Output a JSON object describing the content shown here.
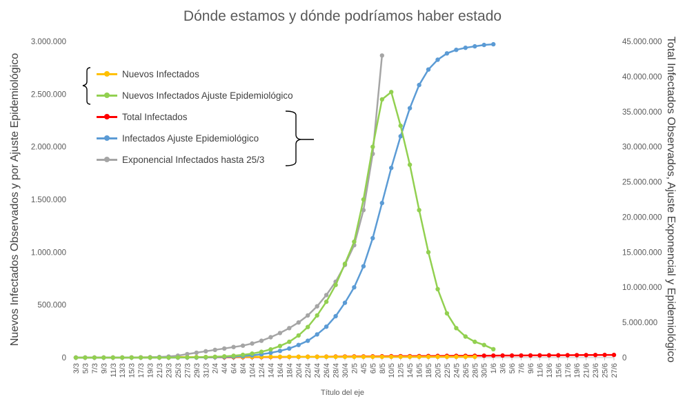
{
  "chart_data": {
    "type": "line",
    "title": "Dónde estamos y dónde podríamos haber estado",
    "xlabel": "Título del eje",
    "ylabel_left": "Nuevos Infectados Observados y por Ajuste Epidemiológico",
    "ylabel_right": "Total Infectados Observados, Ajuste Exponencial y Epidemiológico",
    "ylim_left": [
      0,
      3000000
    ],
    "ylim_right": [
      0,
      45000000
    ],
    "yticks_left": [
      "0",
      "500.000",
      "1.000.000",
      "1.500.000",
      "2.000.000",
      "2.500.000",
      "3.000.000"
    ],
    "yticks_right": [
      "0",
      "5.000.000",
      "10.000.000",
      "15.000.000",
      "20.000.000",
      "25.000.000",
      "30.000.000",
      "35.000.000",
      "40.000.000",
      "45.000.000"
    ],
    "x_tick_labels": [
      "3/3",
      "5/3",
      "7/3",
      "9/3",
      "11/3",
      "13/3",
      "15/3",
      "17/3",
      "19/3",
      "21/3",
      "23/3",
      "25/3",
      "27/3",
      "29/3",
      "31/3",
      "2/4",
      "4/4",
      "6/4",
      "8/4",
      "10/4",
      "12/4",
      "14/4",
      "16/4",
      "18/4",
      "20/4",
      "22/4",
      "24/4",
      "26/4",
      "28/4",
      "30/4",
      "2/5",
      "4/5",
      "6/5",
      "8/5",
      "10/5",
      "12/5",
      "14/5",
      "16/5",
      "18/5",
      "20/5",
      "22/5",
      "24/5",
      "26/5",
      "28/5",
      "30/5",
      "1/6",
      "3/6",
      "5/6",
      "7/6",
      "9/6",
      "11/6",
      "13/6",
      "15/6",
      "17/6",
      "19/6",
      "21/6",
      "23/6",
      "25/6",
      "27/6"
    ],
    "grid": false,
    "legend_position": "top-left",
    "series": [
      {
        "name": "Nuevos Infectados",
        "axis": "left",
        "color": "#FFC000",
        "x": [
          "3/3",
          "5/3",
          "7/3",
          "9/3",
          "11/3",
          "13/3",
          "15/3",
          "17/3",
          "19/3",
          "21/3",
          "23/3",
          "25/3",
          "27/3",
          "29/3",
          "31/3",
          "2/4",
          "4/4",
          "6/4",
          "8/4",
          "10/4",
          "12/4",
          "14/4",
          "16/4",
          "18/4",
          "20/4",
          "22/4",
          "24/4",
          "26/4",
          "28/4",
          "30/4",
          "2/5",
          "4/5",
          "6/5",
          "8/5",
          "10/5",
          "12/5",
          "14/5",
          "16/5",
          "18/5",
          "20/5",
          "22/5",
          "24/5",
          "26/5",
          "28/5"
        ],
        "values": [
          100,
          200,
          400,
          700,
          1000,
          1500,
          2000,
          2500,
          3000,
          3500,
          4000,
          4500,
          5000,
          5500,
          6000,
          6500,
          7000,
          7000,
          7500,
          7500,
          7500,
          8000,
          8000,
          8000,
          8000,
          8000,
          8000,
          8000,
          8000,
          8000,
          8000,
          8000,
          8000,
          8000,
          8000,
          8000,
          8000,
          8000,
          8000,
          8000,
          8000,
          8000,
          8000,
          8000
        ]
      },
      {
        "name": "Nuevos Infectados Ajuste Epidemiológico",
        "axis": "left",
        "color": "#92D050",
        "x": [
          "3/3",
          "5/3",
          "7/3",
          "9/3",
          "11/3",
          "13/3",
          "15/3",
          "17/3",
          "19/3",
          "21/3",
          "23/3",
          "25/3",
          "27/3",
          "29/3",
          "31/3",
          "2/4",
          "4/4",
          "6/4",
          "8/4",
          "10/4",
          "12/4",
          "14/4",
          "16/4",
          "18/4",
          "20/4",
          "22/4",
          "24/4",
          "26/4",
          "28/4",
          "30/4",
          "2/5",
          "4/5",
          "6/5",
          "8/5",
          "10/5",
          "12/5",
          "14/5",
          "16/5",
          "18/5",
          "20/5",
          "22/5",
          "24/5",
          "26/5",
          "28/5",
          "30/5",
          "1/6"
        ],
        "values": [
          0,
          0,
          0,
          0,
          0,
          0,
          0,
          0,
          0,
          0,
          0,
          1000,
          2000,
          3000,
          5000,
          8000,
          12000,
          18000,
          26000,
          38000,
          55000,
          78000,
          110000,
          150000,
          210000,
          290000,
          400000,
          530000,
          690000,
          890000,
          1100000,
          1500000,
          2000000,
          2450000,
          2520000,
          2200000,
          1830000,
          1400000,
          1000000,
          650000,
          420000,
          280000,
          200000,
          150000,
          120000,
          80000
        ]
      },
      {
        "name": "Total Infectados",
        "axis": "right",
        "color": "#FF0000",
        "x": [
          "3/3",
          "5/3",
          "7/3",
          "9/3",
          "11/3",
          "13/3",
          "15/3",
          "17/3",
          "19/3",
          "21/3",
          "23/3",
          "25/3",
          "27/3",
          "29/3",
          "31/3",
          "2/4",
          "4/4",
          "6/4",
          "8/4",
          "10/4",
          "12/4",
          "14/4",
          "16/4",
          "18/4",
          "20/4",
          "22/4",
          "24/4",
          "26/4",
          "28/4",
          "30/4",
          "2/5",
          "4/5",
          "6/5",
          "8/5",
          "10/5",
          "12/5",
          "14/5",
          "16/5",
          "18/5",
          "20/5",
          "22/5",
          "24/5",
          "26/5",
          "28/5",
          "30/5",
          "1/6",
          "3/6",
          "5/6",
          "7/6",
          "9/6",
          "11/6",
          "13/6",
          "15/6",
          "17/6",
          "19/6",
          "21/6",
          "23/6",
          "25/6",
          "27/6"
        ],
        "values": [
          100,
          300,
          700,
          1400,
          2400,
          3900,
          5900,
          8400,
          11400,
          14900,
          18900,
          23400,
          28400,
          33900,
          39900,
          46400,
          53400,
          60400,
          67900,
          75400,
          82900,
          90900,
          98900,
          106900,
          114900,
          122900,
          130900,
          138900,
          146900,
          154900,
          162900,
          170900,
          178900,
          186900,
          194900,
          202900,
          210900,
          218900,
          226900,
          234900,
          242900,
          250900,
          258900,
          266900,
          274900,
          282900,
          290900,
          298900,
          306900,
          314900,
          322900,
          330900,
          338900,
          346900,
          354900,
          362900,
          370900,
          378900,
          386900
        ]
      },
      {
        "name": "Infectados Ajuste Epidemiológico",
        "axis": "right",
        "color": "#5B9BD5",
        "x": [
          "3/3",
          "5/3",
          "7/3",
          "9/3",
          "11/3",
          "13/3",
          "15/3",
          "17/3",
          "19/3",
          "21/3",
          "23/3",
          "25/3",
          "27/3",
          "29/3",
          "31/3",
          "2/4",
          "4/4",
          "6/4",
          "8/4",
          "10/4",
          "12/4",
          "14/4",
          "16/4",
          "18/4",
          "20/4",
          "22/4",
          "24/4",
          "26/4",
          "28/4",
          "30/4",
          "2/5",
          "4/5",
          "6/5",
          "8/5",
          "10/5",
          "12/5",
          "14/5",
          "16/5",
          "18/5",
          "20/5",
          "22/5",
          "24/5",
          "26/5",
          "28/5",
          "30/5",
          "1/6"
        ],
        "values": [
          0,
          0,
          0,
          0,
          0,
          0,
          0,
          0,
          0,
          0,
          0,
          0,
          10000,
          20000,
          40000,
          60000,
          100000,
          150000,
          220000,
          320000,
          470000,
          680000,
          950000,
          1300000,
          1800000,
          2400000,
          3300000,
          4400000,
          5900000,
          7800000,
          10000000,
          13000000,
          17000000,
          22000000,
          27000000,
          31500000,
          35500000,
          38800000,
          41000000,
          42400000,
          43300000,
          43800000,
          44100000,
          44300000,
          44500000,
          44600000
        ]
      },
      {
        "name": "Exponencial Infectados hasta 25/3",
        "axis": "right",
        "color": "#A5A5A5",
        "x": [
          "3/3",
          "5/3",
          "7/3",
          "9/3",
          "11/3",
          "13/3",
          "15/3",
          "17/3",
          "19/3",
          "21/3",
          "23/3",
          "25/3",
          "27/3",
          "29/3",
          "31/3",
          "2/4",
          "4/4",
          "6/4",
          "8/4",
          "10/4",
          "12/4",
          "14/4",
          "16/4",
          "18/4",
          "20/4",
          "22/4",
          "24/4",
          "26/4",
          "28/4",
          "30/4",
          "2/5",
          "4/5",
          "6/5",
          "8/5"
        ],
        "values": [
          500,
          900,
          1600,
          2800,
          5000,
          9000,
          16000,
          28000,
          50000,
          90000,
          160000,
          280000,
          500000,
          700000,
          900000,
          1100000,
          1300000,
          1500000,
          1700000,
          2000000,
          2400000,
          2900000,
          3500000,
          4200000,
          5000000,
          6000000,
          7300000,
          8900000,
          10800000,
          13200000,
          16000000,
          21000000,
          29000000,
          43000000
        ]
      }
    ]
  }
}
